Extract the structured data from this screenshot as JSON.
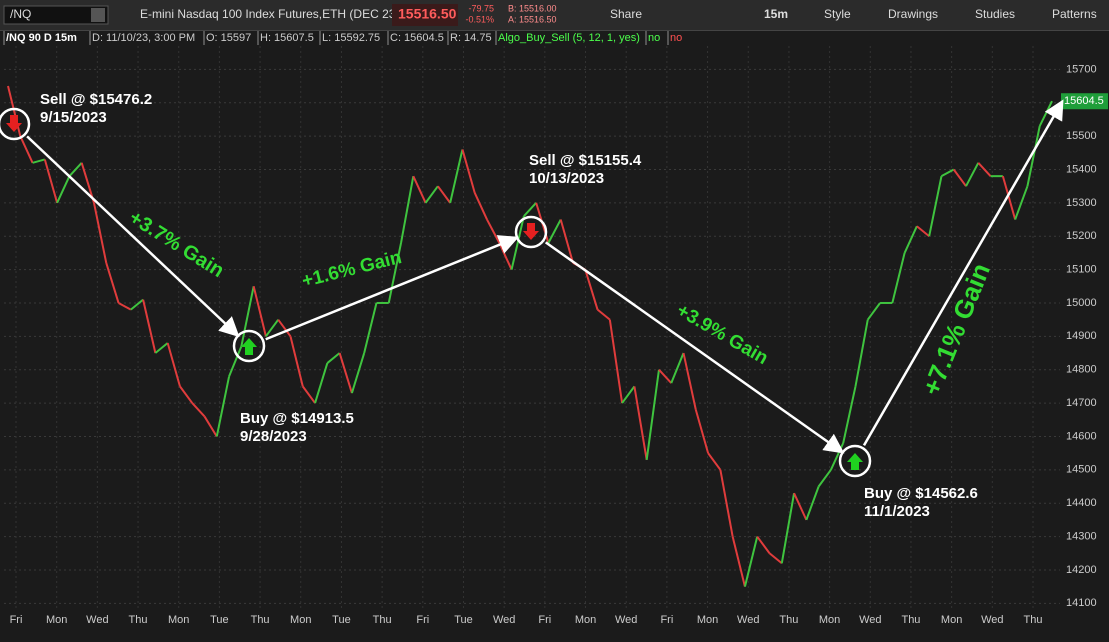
{
  "toolbar": {
    "symbol": "/NQ",
    "description": "E-mini Nasdaq 100 Index Futures,ETH (DEC 23)",
    "last": "15516.50",
    "change": "-79.75",
    "change_pct": "-0.51%",
    "bid": "B: 15516.00",
    "ask": "A: 15516.50",
    "share": "Share",
    "interval": "15m",
    "style": "Style",
    "drawings": "Drawings",
    "studies": "Studies",
    "patterns": "Patterns"
  },
  "info_bar": {
    "chart_name": "/NQ 90 D 15m",
    "date": "D: 11/10/23, 3:00 PM",
    "open": "O: 15597",
    "high": "H: 15607.5",
    "low": "L: 15592.75",
    "close": "C: 15604.5",
    "range": "R: 14.75",
    "study": "Algo_Buy_Sell (5, 12, 1, yes)",
    "flag1": "no",
    "flag2": "no"
  },
  "chart": {
    "ylim": [
      14080,
      15770
    ],
    "yticks": [
      14100,
      14200,
      14300,
      14400,
      14500,
      14600,
      14700,
      14800,
      14900,
      15000,
      15100,
      15200,
      15300,
      15400,
      15500,
      15600,
      15700
    ],
    "last_price_label": "15604.5",
    "x_labels": [
      "Fri",
      "Mon",
      "Wed",
      "Thu",
      "Mon",
      "Tue",
      "Thu",
      "Mon",
      "Tue",
      "Thu",
      "Fri",
      "Tue",
      "Wed",
      "Fri",
      "Mon",
      "Wed",
      "Fri",
      "Mon",
      "Wed",
      "Thu",
      "Mon",
      "Wed",
      "Thu",
      "Mon",
      "Wed",
      "Thu"
    ],
    "prices": [
      15650,
      15500,
      15420,
      15430,
      15300,
      15380,
      15420,
      15300,
      15120,
      15000,
      14980,
      15010,
      14850,
      14880,
      14750,
      14700,
      14660,
      14600,
      14780,
      14870,
      15050,
      14900,
      14950,
      14900,
      14750,
      14700,
      14820,
      14850,
      14730,
      14850,
      15000,
      15000,
      15180,
      15380,
      15300,
      15350,
      15300,
      15460,
      15330,
      15250,
      15180,
      15100,
      15260,
      15300,
      15180,
      15250,
      15120,
      15100,
      14980,
      14950,
      14700,
      14750,
      14530,
      14800,
      14760,
      14850,
      14680,
      14550,
      14500,
      14300,
      14150,
      14300,
      14250,
      14220,
      14430,
      14350,
      14450,
      14500,
      14580,
      14750,
      14950,
      15000,
      15000,
      15150,
      15230,
      15200,
      15380,
      15400,
      15350,
      15420,
      15380,
      15380,
      15250,
      15350,
      15530,
      15604.5
    ],
    "annotations": [
      {
        "title": "Sell @ $15476.2",
        "date": "9/15/2023"
      },
      {
        "title": "Buy @ $14913.5",
        "date": "9/28/2023"
      },
      {
        "title": "Sell @ $15155.4",
        "date": "10/13/2023"
      },
      {
        "title": "Buy @ $14562.6",
        "date": "11/1/2023"
      }
    ],
    "gains": [
      "+3.7% Gain",
      "+1.6% Gain",
      "+3.9% Gain",
      "+7.1% Gain"
    ]
  }
}
